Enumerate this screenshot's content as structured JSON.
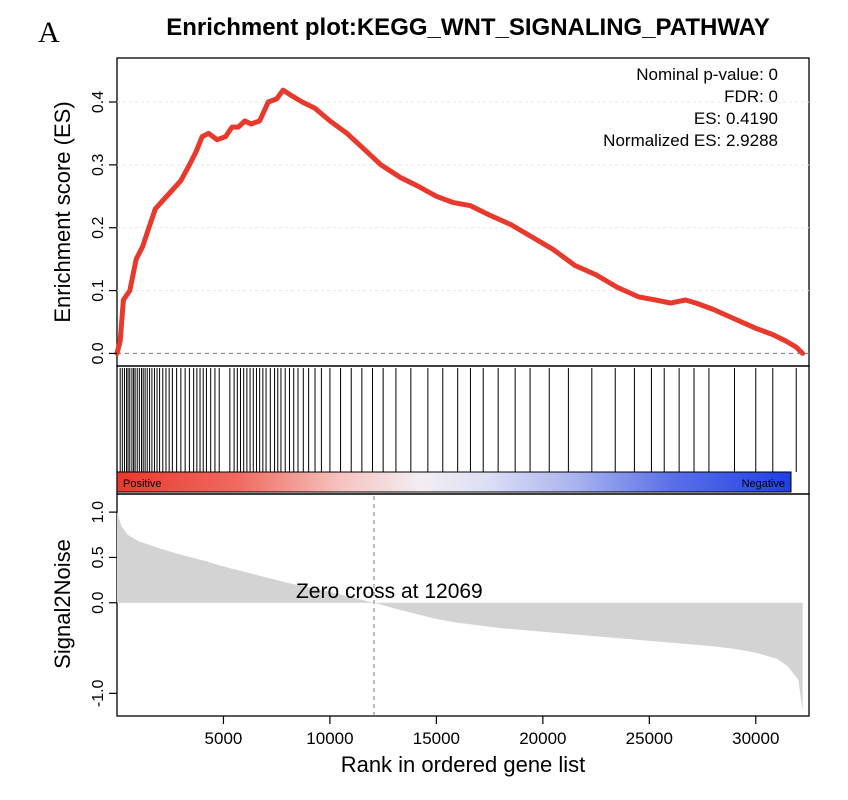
{
  "figure": {
    "panel_label": "A",
    "title": "Enrichment plot:KEGG_WNT_SIGNALING_PATHWAY"
  },
  "stats": [
    "Nominal p-value: 0",
    "FDR: 0",
    "ES: 0.4190",
    "Normalized ES: 2.9288"
  ],
  "colors": {
    "es_line": "#e8392d",
    "bar_fill": "#d3d3d3",
    "positive": "#e8392d",
    "negative": "#1f3fe6",
    "hit": "#000000"
  },
  "chart_data": [
    {
      "type": "line",
      "ylabel": "Enrichment score (ES)",
      "xlim": [
        0,
        32500
      ],
      "ylim": [
        -0.02,
        0.47
      ],
      "yticks": [
        "0.0",
        "0.1",
        "0.2",
        "0.3",
        "0.4"
      ],
      "grid": true,
      "x": [
        0,
        150,
        300,
        600,
        900,
        1200,
        1500,
        1800,
        2200,
        2600,
        3000,
        3400,
        3700,
        4000,
        4300,
        4700,
        5100,
        5400,
        5700,
        6000,
        6300,
        6700,
        7100,
        7500,
        7800,
        8200,
        8700,
        9300,
        10000,
        10800,
        11600,
        12400,
        13300,
        14200,
        15000,
        15800,
        16600,
        17500,
        18500,
        19500,
        20500,
        21500,
        22500,
        23500,
        24500,
        25300,
        26000,
        26700,
        27200,
        28000,
        29000,
        30000,
        30800,
        31400,
        31900,
        32200
      ],
      "y": [
        0.0,
        0.02,
        0.085,
        0.1,
        0.15,
        0.17,
        0.2,
        0.23,
        0.245,
        0.26,
        0.275,
        0.3,
        0.32,
        0.345,
        0.35,
        0.34,
        0.345,
        0.36,
        0.36,
        0.37,
        0.365,
        0.37,
        0.4,
        0.405,
        0.419,
        0.41,
        0.4,
        0.39,
        0.37,
        0.35,
        0.325,
        0.3,
        0.28,
        0.265,
        0.25,
        0.24,
        0.235,
        0.22,
        0.205,
        0.185,
        0.165,
        0.14,
        0.125,
        0.105,
        0.09,
        0.085,
        0.08,
        0.085,
        0.08,
        0.07,
        0.055,
        0.04,
        0.03,
        0.02,
        0.01,
        0.0
      ],
      "reference_line": 0
    },
    {
      "type": "scatter",
      "name": "hits",
      "xlim": [
        0,
        32500
      ],
      "hit_ranks": [
        150,
        250,
        350,
        450,
        520,
        600,
        700,
        780,
        850,
        950,
        1050,
        1150,
        1230,
        1320,
        1420,
        1530,
        1640,
        1760,
        1880,
        2000,
        2150,
        2300,
        2450,
        2600,
        2800,
        3000,
        3200,
        3400,
        3600,
        3750,
        3900,
        4050,
        4200,
        4400,
        4600,
        4800,
        5300,
        5500,
        5650,
        5800,
        5950,
        6100,
        6250,
        6400,
        6550,
        6700,
        6850,
        7000,
        7200,
        7400,
        7550,
        7700,
        7900,
        8100,
        8300,
        8500,
        8750,
        9000,
        9300,
        9600,
        10000,
        10500,
        11000,
        11500,
        12000,
        12500,
        13100,
        13800,
        14600,
        15300,
        16000,
        16600,
        17200,
        17900,
        18700,
        19400,
        20300,
        21200,
        22300,
        23400,
        24300,
        25100,
        25700,
        26400,
        27100,
        27800,
        29000,
        30000,
        30800,
        31900
      ],
      "band_labels": [
        "Positive",
        "Negative"
      ]
    },
    {
      "type": "area",
      "ylabel": "Signal2Noise",
      "xlabel": "Rank in ordered gene list",
      "xlim": [
        0,
        32500
      ],
      "ylim": [
        -1.25,
        1.2
      ],
      "yticks": [
        "1.0",
        "0.5",
        "0.0",
        "-1.0"
      ],
      "xticks": [
        "5000",
        "10000",
        "15000",
        "20000",
        "25000",
        "30000"
      ],
      "x": [
        0,
        200,
        500,
        1000,
        2000,
        3000,
        4000,
        5000,
        6000,
        7000,
        8000,
        9000,
        10000,
        11000,
        12069,
        13000,
        14000,
        15000,
        16000,
        17000,
        18000,
        19000,
        20000,
        22000,
        24000,
        26000,
        28000,
        29000,
        30000,
        31000,
        31500,
        32000,
        32200
      ],
      "y": [
        1.0,
        0.85,
        0.75,
        0.68,
        0.6,
        0.53,
        0.47,
        0.4,
        0.34,
        0.28,
        0.22,
        0.17,
        0.12,
        0.06,
        0.0,
        -0.06,
        -0.12,
        -0.18,
        -0.22,
        -0.25,
        -0.28,
        -0.3,
        -0.32,
        -0.36,
        -0.4,
        -0.44,
        -0.48,
        -0.51,
        -0.55,
        -0.62,
        -0.7,
        -0.85,
        -1.2
      ],
      "zero_cross_rank": 12069,
      "annotation": "Zero cross at 12069"
    }
  ]
}
